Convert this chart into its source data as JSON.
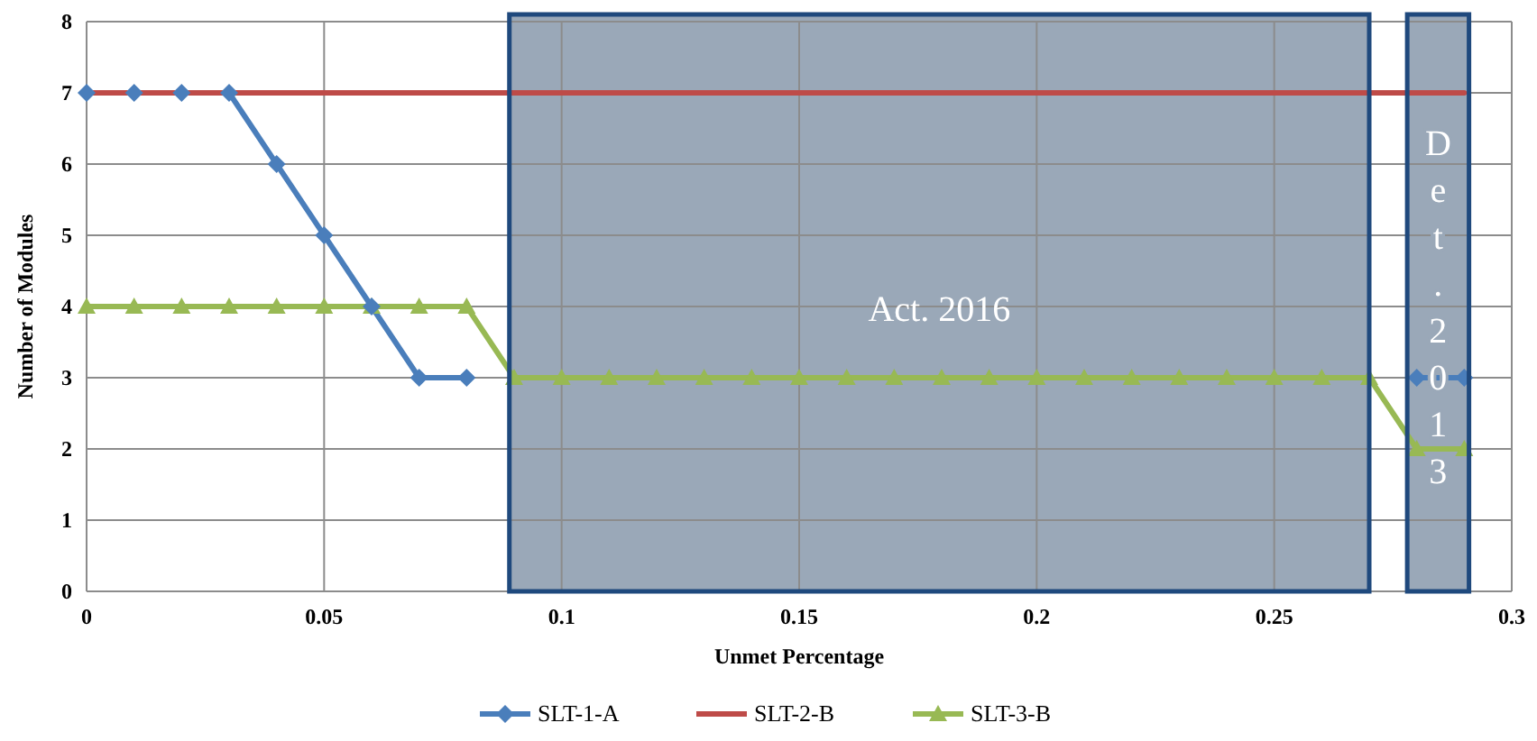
{
  "chart_data": {
    "type": "line",
    "xlabel": "Unmet Percentage",
    "ylabel": "Number of Modules",
    "x": [
      0,
      0.01,
      0.02,
      0.03,
      0.04,
      0.05,
      0.06,
      0.07,
      0.08,
      0.09,
      0.1,
      0.11,
      0.12,
      0.13,
      0.14,
      0.15,
      0.16,
      0.17,
      0.18,
      0.19,
      0.2,
      0.21,
      0.22,
      0.23,
      0.24,
      0.25,
      0.26,
      0.27,
      0.28,
      0.29
    ],
    "series": [
      {
        "name": "SLT-1-A",
        "color": "#4a7ebb",
        "marker": "diamond",
        "values": [
          7,
          7,
          7,
          7,
          6,
          5,
          4,
          3,
          3,
          null,
          null,
          null,
          null,
          null,
          null,
          null,
          null,
          null,
          null,
          null,
          null,
          null,
          null,
          null,
          null,
          null,
          null,
          null,
          3,
          3
        ]
      },
      {
        "name": "SLT-2-B",
        "color": "#be4b48",
        "marker": "none",
        "values": [
          7,
          7,
          7,
          7,
          7,
          7,
          7,
          7,
          7,
          7,
          7,
          7,
          7,
          7,
          7,
          7,
          7,
          7,
          7,
          7,
          7,
          7,
          7,
          7,
          7,
          7,
          7,
          7,
          7,
          7
        ]
      },
      {
        "name": "SLT-3-B",
        "color": "#98b954",
        "marker": "triangle",
        "values": [
          4,
          4,
          4,
          4,
          4,
          4,
          4,
          4,
          4,
          3,
          3,
          3,
          3,
          3,
          3,
          3,
          3,
          3,
          3,
          3,
          3,
          3,
          3,
          3,
          3,
          3,
          3,
          3,
          2,
          2
        ]
      }
    ],
    "xlim": [
      0,
      0.3
    ],
    "xticks": [
      0,
      0.05,
      0.1,
      0.15,
      0.2,
      0.25,
      0.3
    ],
    "ylim": [
      0,
      8
    ],
    "yticks": [
      0,
      1,
      2,
      3,
      4,
      5,
      6,
      7,
      8
    ],
    "bands": [
      {
        "axis": "x",
        "from": 0.089,
        "to": 0.27,
        "label": "Act. 2016",
        "color": "#9aa8b8"
      },
      {
        "axis": "x",
        "from": 0.278,
        "to": 0.291,
        "label": "Det. 2013",
        "color": "#9aa8b8"
      }
    ],
    "grid": true,
    "legend": "bottom"
  }
}
